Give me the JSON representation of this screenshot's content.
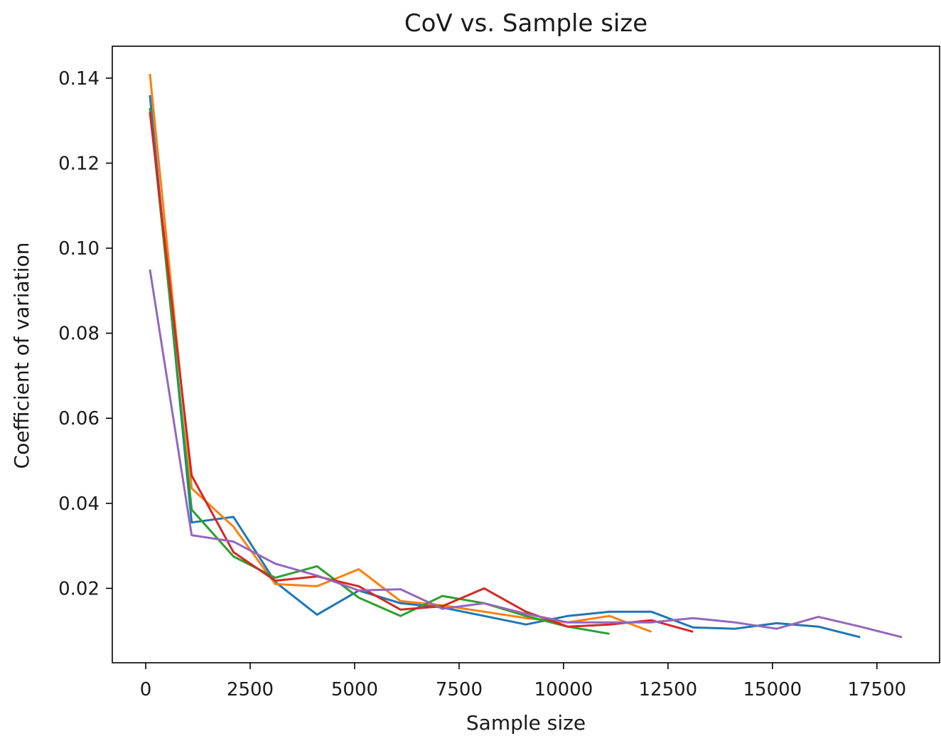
{
  "chart_data": {
    "type": "line",
    "title": "CoV vs. Sample size",
    "xlabel": "Sample size",
    "ylabel": "Coefficient of variation",
    "xlim": [
      -800,
      19000
    ],
    "ylim": [
      0.0025,
      0.1475
    ],
    "xticks": [
      0,
      2500,
      5000,
      7500,
      10000,
      12500,
      15000,
      17500
    ],
    "xtick_labels": [
      "0",
      "2500",
      "5000",
      "7500",
      "10000",
      "12500",
      "15000",
      "17500"
    ],
    "yticks": [
      0.02,
      0.04,
      0.06,
      0.08,
      0.1,
      0.12,
      0.14
    ],
    "ytick_labels": [
      "0.02",
      "0.04",
      "0.06",
      "0.08",
      "0.10",
      "0.12",
      "0.14"
    ],
    "grid": false,
    "legend": "none",
    "series": [
      {
        "color": "#1f77b4",
        "x": [
          100,
          1100,
          2100,
          3100,
          4100,
          5100,
          6100,
          7100,
          8100,
          9100,
          10100,
          11100,
          12100,
          13100,
          14100,
          15100,
          16100,
          17100
        ],
        "y": [
          0.136,
          0.0355,
          0.0368,
          0.0215,
          0.0138,
          0.0195,
          0.0165,
          0.0155,
          0.0135,
          0.0115,
          0.0135,
          0.0145,
          0.0145,
          0.0108,
          0.0105,
          0.0118,
          0.011,
          0.0085
        ]
      },
      {
        "color": "#ff7f0e",
        "x": [
          100,
          1100,
          2100,
          3100,
          4100,
          5100,
          6100,
          7100,
          8100,
          9100,
          10100,
          11100,
          12100
        ],
        "y": [
          0.141,
          0.0435,
          0.0345,
          0.021,
          0.0205,
          0.0245,
          0.017,
          0.016,
          0.0145,
          0.013,
          0.012,
          0.0135,
          0.0098
        ]
      },
      {
        "color": "#2ca02c",
        "x": [
          100,
          1100,
          2100,
          3100,
          4100,
          5100,
          6100,
          7100,
          8100,
          9100,
          10100,
          11100
        ],
        "y": [
          0.133,
          0.0385,
          0.0275,
          0.0225,
          0.0252,
          0.0178,
          0.0135,
          0.0182,
          0.0165,
          0.0135,
          0.011,
          0.0093
        ]
      },
      {
        "color": "#d62728",
        "x": [
          100,
          1100,
          2100,
          3100,
          4100,
          5100,
          6100,
          7100,
          8100,
          9100,
          10100,
          11100,
          12100,
          13100
        ],
        "y": [
          0.132,
          0.0465,
          0.0285,
          0.0218,
          0.0228,
          0.0205,
          0.015,
          0.0158,
          0.02,
          0.0145,
          0.011,
          0.0115,
          0.0125,
          0.0098
        ]
      },
      {
        "color": "#9467bd",
        "x": [
          100,
          1100,
          2100,
          3100,
          4100,
          5100,
          6100,
          7100,
          8100,
          9100,
          10100,
          11100,
          12100,
          13100,
          14100,
          15100,
          16100,
          17100,
          18100
        ],
        "y": [
          0.095,
          0.0325,
          0.031,
          0.0258,
          0.023,
          0.0195,
          0.0198,
          0.0152,
          0.0165,
          0.014,
          0.012,
          0.012,
          0.012,
          0.013,
          0.012,
          0.0105,
          0.0133,
          0.011,
          0.0085
        ]
      }
    ]
  }
}
